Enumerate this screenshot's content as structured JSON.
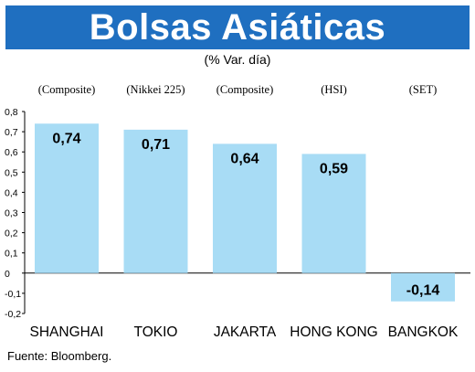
{
  "header": {
    "title": "Bolsas Asiáticas",
    "subtitle": "(% Var. día)"
  },
  "footer": {
    "source": "Fuente: Bloomberg."
  },
  "colors": {
    "title_bar": "#1f6fc0",
    "bar_fill": "#a8dcf5",
    "axis": "#000000"
  },
  "chart_data": {
    "type": "bar",
    "title": "Bolsas Asiáticas",
    "subtitle": "(% Var. día)",
    "categories": [
      "SHANGHAI",
      "TOKIO",
      "JAKARTA",
      "HONG KONG",
      "BANGKOK"
    ],
    "index_labels": [
      "(Composite)",
      "(Nikkei 225)",
      "(Composite)",
      "(HSI)",
      "(SET)"
    ],
    "values": [
      0.74,
      0.71,
      0.64,
      0.59,
      -0.14
    ],
    "value_labels": [
      "0,74",
      "0,71",
      "0,64",
      "0,59",
      "-0,14"
    ],
    "ylim": [
      -0.2,
      0.8
    ],
    "yticks": [
      0.8,
      0.7,
      0.6,
      0.5,
      0.4,
      0.3,
      0.2,
      0.1,
      0,
      -0.1,
      -0.2
    ],
    "ytick_labels": [
      "0,8",
      "0,7",
      "0,6",
      "0,5",
      "0,4",
      "0,3",
      "0,2",
      "0,1",
      "0",
      "-0,1",
      "-0,2"
    ],
    "grid": false,
    "legend": "none"
  }
}
